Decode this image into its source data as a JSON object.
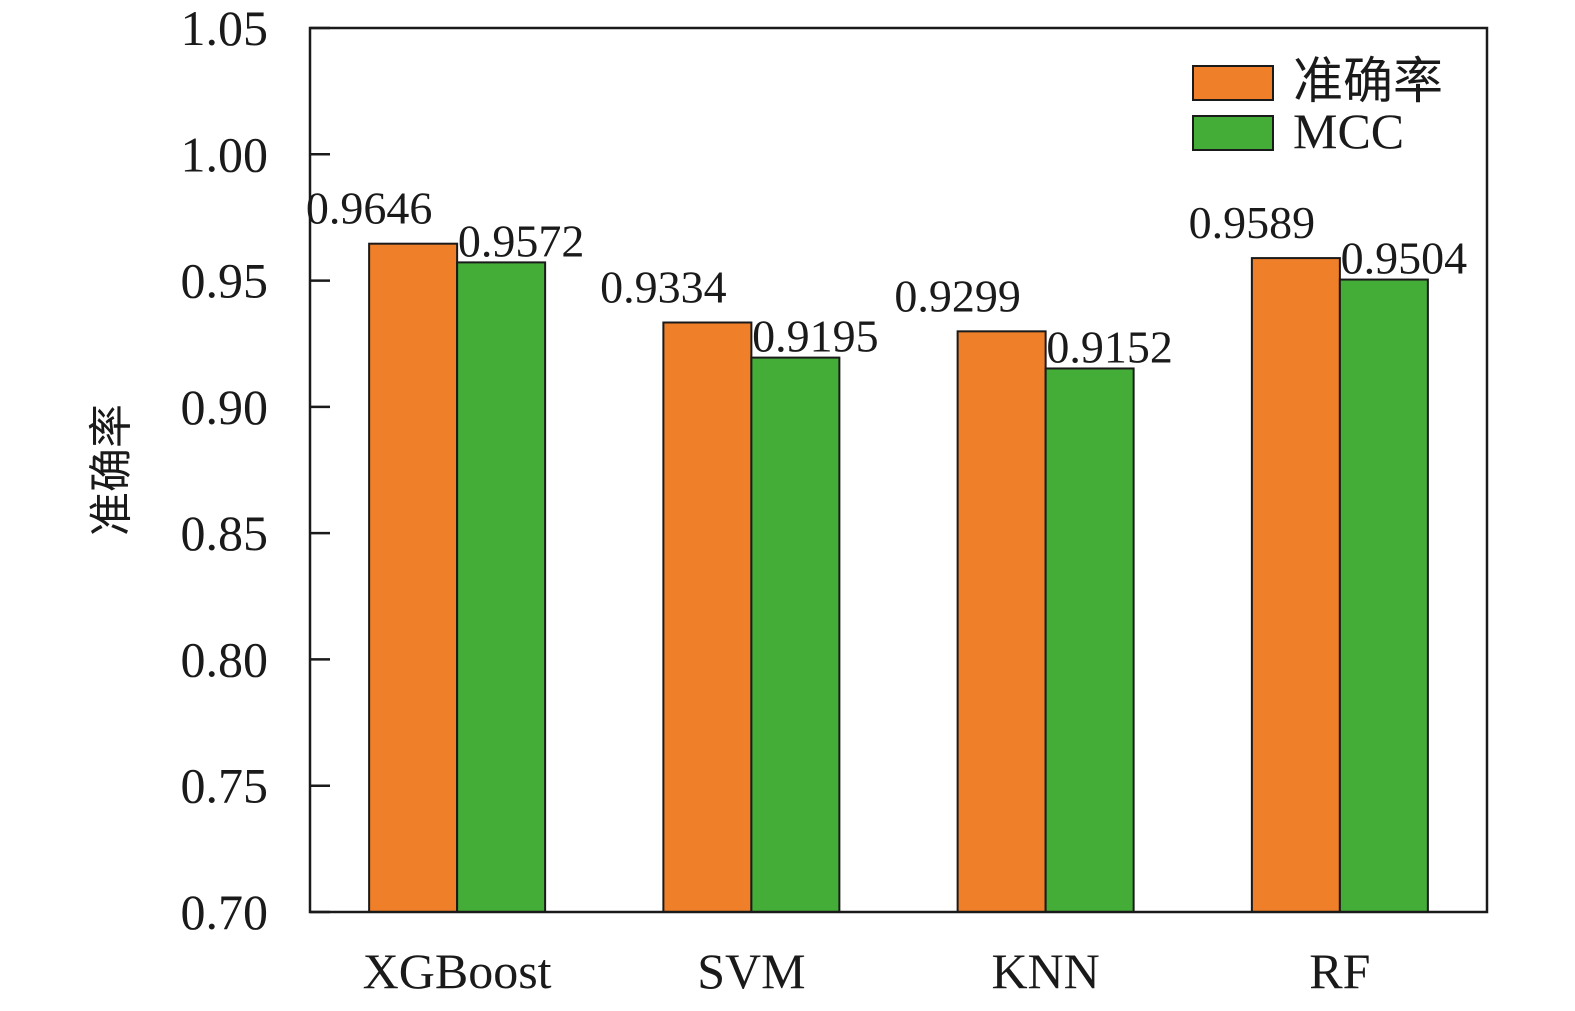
{
  "chart_data": {
    "type": "bar",
    "title": "",
    "xlabel": "",
    "ylabel": "准确率",
    "categories": [
      "XGBoost",
      "SVM",
      "KNN",
      "RF"
    ],
    "series": [
      {
        "name": "准确率",
        "values": [
          0.9646,
          0.9334,
          0.9299,
          0.9589
        ],
        "labels": [
          "0.9646",
          "0.9334",
          "0.9299",
          "0.9589"
        ],
        "color": "#f07f29"
      },
      {
        "name": "MCC",
        "values": [
          0.9572,
          0.9195,
          0.9152,
          0.9504
        ],
        "labels": [
          "0.9572",
          "0.9195",
          "0.9152",
          "0.9504"
        ],
        "color": "#44ad38"
      }
    ],
    "ylim": [
      0.7,
      1.05
    ],
    "yticks": [
      "0.70",
      "0.75",
      "0.80",
      "0.85",
      "0.90",
      "0.95",
      "1.00",
      "1.05"
    ],
    "grid": false,
    "legend_position": "top-right"
  }
}
